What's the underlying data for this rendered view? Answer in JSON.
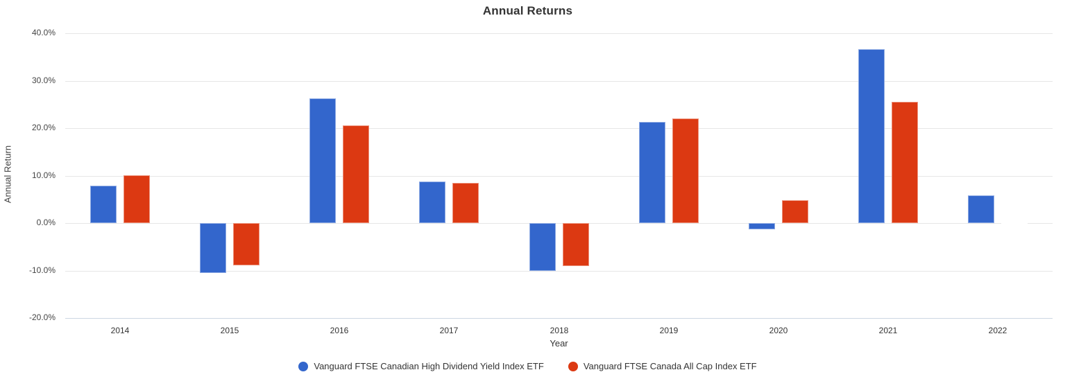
{
  "title": "Annual Returns",
  "axes": {
    "x_title": "Year",
    "y_title": "Annual Return",
    "y_ticks": [
      {
        "label": "40.0%",
        "value": 40
      },
      {
        "label": "30.0%",
        "value": 30
      },
      {
        "label": "20.0%",
        "value": 20
      },
      {
        "label": "10.0%",
        "value": 10
      },
      {
        "label": "0.0%",
        "value": 0
      },
      {
        "label": "-10.0%",
        "value": -10
      },
      {
        "label": "-20.0%",
        "value": -20
      }
    ]
  },
  "chart_data": {
    "type": "bar",
    "title": "Annual Returns",
    "xlabel": "Year",
    "ylabel": "Annual Return",
    "categories": [
      "2014",
      "2015",
      "2016",
      "2017",
      "2018",
      "2019",
      "2020",
      "2021",
      "2022"
    ],
    "series": [
      {
        "name": "Vanguard FTSE Canadian High Dividend Yield Index ETF",
        "color": "#3366CC",
        "values": [
          7.9,
          -10.5,
          26.3,
          8.7,
          -10.1,
          21.3,
          -1.3,
          36.7,
          5.8
        ]
      },
      {
        "name": "Vanguard FTSE Canada All Cap Index ETF",
        "color": "#DC3912",
        "values": [
          10.1,
          -8.9,
          20.6,
          8.5,
          -9.0,
          22.0,
          4.8,
          25.6,
          0.0
        ]
      }
    ],
    "ylim": [
      -20,
      40
    ],
    "y_tick_step": 10,
    "y_tick_format": "0.0%",
    "grid": true,
    "legend_position": "bottom"
  },
  "legend": {
    "items": [
      {
        "label": "Vanguard FTSE Canadian High Dividend Yield Index ETF",
        "color": "#3366CC",
        "marker": "circle"
      },
      {
        "label": "Vanguard FTSE Canada All Cap Index ETF",
        "color": "#DC3912",
        "marker": "circle"
      }
    ]
  },
  "colors": {
    "grid": "#e6e6e6",
    "axis_line": "#ccd6e2",
    "text": "#333333",
    "series_blue": "#3366CC",
    "series_red": "#DC3912"
  }
}
